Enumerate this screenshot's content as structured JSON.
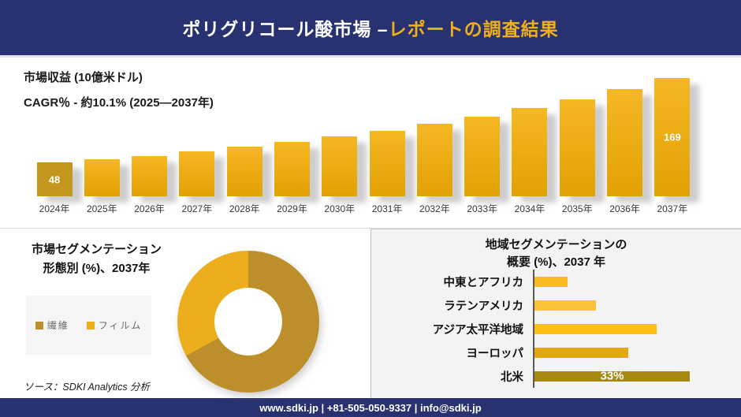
{
  "header": {
    "title_white": "ポリグリコール酸市場 –",
    "title_gold": "レポートの調査結果",
    "bg_color": "#293271",
    "gold_color": "#F0B01C"
  },
  "revenue_section": {
    "metric_label": "市場収益 (10億米ドル)",
    "cagr_label": "CAGR％ - 約10.1% (2025―2037年)"
  },
  "chart_data": [
    {
      "type": "bar",
      "title": "市場収益 (10億米ドル)",
      "subtitle": "CAGR％ - 約10.1% (2025―2037年)",
      "categories": [
        "2024年",
        "2025年",
        "2026年",
        "2027年",
        "2028年",
        "2029年",
        "2030年",
        "2031年",
        "2032年",
        "2033年",
        "2034年",
        "2035年",
        "2036年",
        "2037年"
      ],
      "values": [
        48,
        53,
        58,
        64,
        71,
        78,
        86,
        94,
        104,
        114,
        126,
        139,
        153,
        169
      ],
      "data_labels": [
        "48",
        "",
        "",
        "",
        "",
        "",
        "",
        "",
        "",
        "",
        "",
        "",
        "",
        "169"
      ],
      "ylim": [
        0,
        175
      ],
      "first_bar_color": "#C2961F",
      "bar_gradient_top": "#F5B724",
      "bar_gradient_bottom": "#E2A104",
      "data_label_color": "#ffffff"
    },
    {
      "type": "pie",
      "style": "donut",
      "title_line1": "市場セグメンテーション",
      "title_line2": "形態別 (%)、2037年",
      "segments": [
        {
          "label": "繊維",
          "value": 67,
          "color": "#BC8F2A"
        },
        {
          "label": "フィルム",
          "value": 33,
          "color": "#ECAE1C"
        }
      ],
      "legend_position": "left"
    },
    {
      "type": "hbar",
      "title_line1": "地域セグメンテーションの",
      "title_line2": "概要 (%)、2037 年",
      "categories": [
        "中東とアフリカ",
        "ラテンアメリカ",
        "アジア太平洋地域",
        "ヨーロッパ",
        "北米"
      ],
      "values": [
        7,
        13,
        26,
        20,
        33
      ],
      "bar_labels": [
        "",
        "",
        "",
        "",
        "33%"
      ],
      "colors": [
        "#F9BB1F",
        "#FCC33A",
        "#FCBE12",
        "#E2A814",
        "#A8890F"
      ],
      "xlim": [
        0,
        35
      ],
      "axis_color": "#595959"
    }
  ],
  "source_note": "ソース：SDKI Analytics 分析",
  "footer": {
    "text": "www.sdki.jp | +81-505-050-9337 | info@sdki.jp",
    "bg_color": "#293271"
  }
}
